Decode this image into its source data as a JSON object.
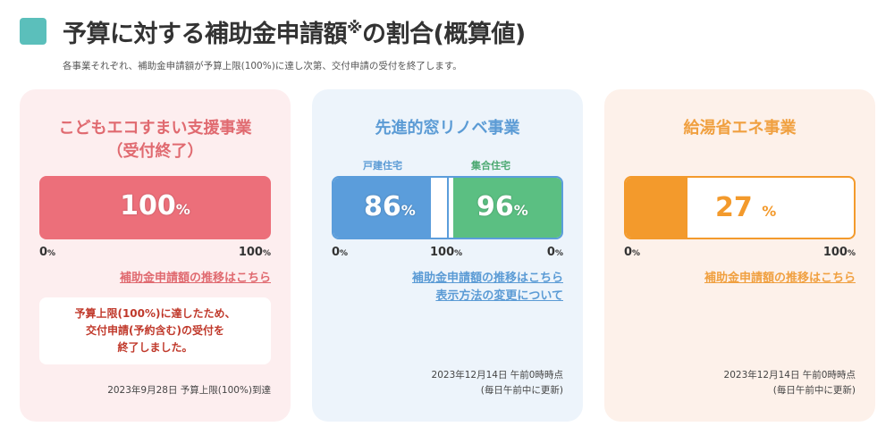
{
  "header": {
    "title": "予算に対する補助金申請額",
    "title_mark": "※",
    "title_suffix": "の割合(概算値)",
    "subtitle": "各事業それぞれ、補助金申請額が予算上限(100%)に達し次第、交付申請の受付を終了します。"
  },
  "cards": [
    {
      "title_line1": "こどもエコすまい支援事業",
      "title_line2": "（受付終了）",
      "percent": 100,
      "percent_label": "100",
      "unit": "%",
      "axis_min": "0",
      "axis_max": "100",
      "link": "補助金申請額の推移はこちら",
      "notice": [
        "予算上限(100%)に達したため、",
        "交付申請(予約含む)の受付を",
        "終了しました。"
      ],
      "footnote": "2023年9月28日 予算上限(100%)到達",
      "color": "#ec6f7a"
    },
    {
      "title": "先進的窓リノベ事業",
      "left_label": "戸建住宅",
      "right_label": "集合住宅",
      "left_percent": 86,
      "left_percent_label": "86",
      "right_percent": 96,
      "right_percent_label": "96",
      "unit": "%",
      "axis_left": "0",
      "axis_mid": "100",
      "axis_right": "0",
      "link1": "補助金申請額の推移はこちら",
      "link2": "表示方法の変更について",
      "footnote1": "2023年12月14日 午前0時時点",
      "footnote2": "(毎日午前中に更新)",
      "color_left": "#5b9ddb",
      "color_right": "#5bbf82"
    },
    {
      "title": "給湯省エネ事業",
      "percent": 27,
      "percent_label": "27",
      "unit": "%",
      "axis_min": "0",
      "axis_max": "100",
      "link": "補助金申請額の推移はこちら",
      "footnote1": "2023年12月14日 午前0時時点",
      "footnote2": "(毎日午前中に更新)",
      "color": "#f39a2c"
    }
  ]
}
